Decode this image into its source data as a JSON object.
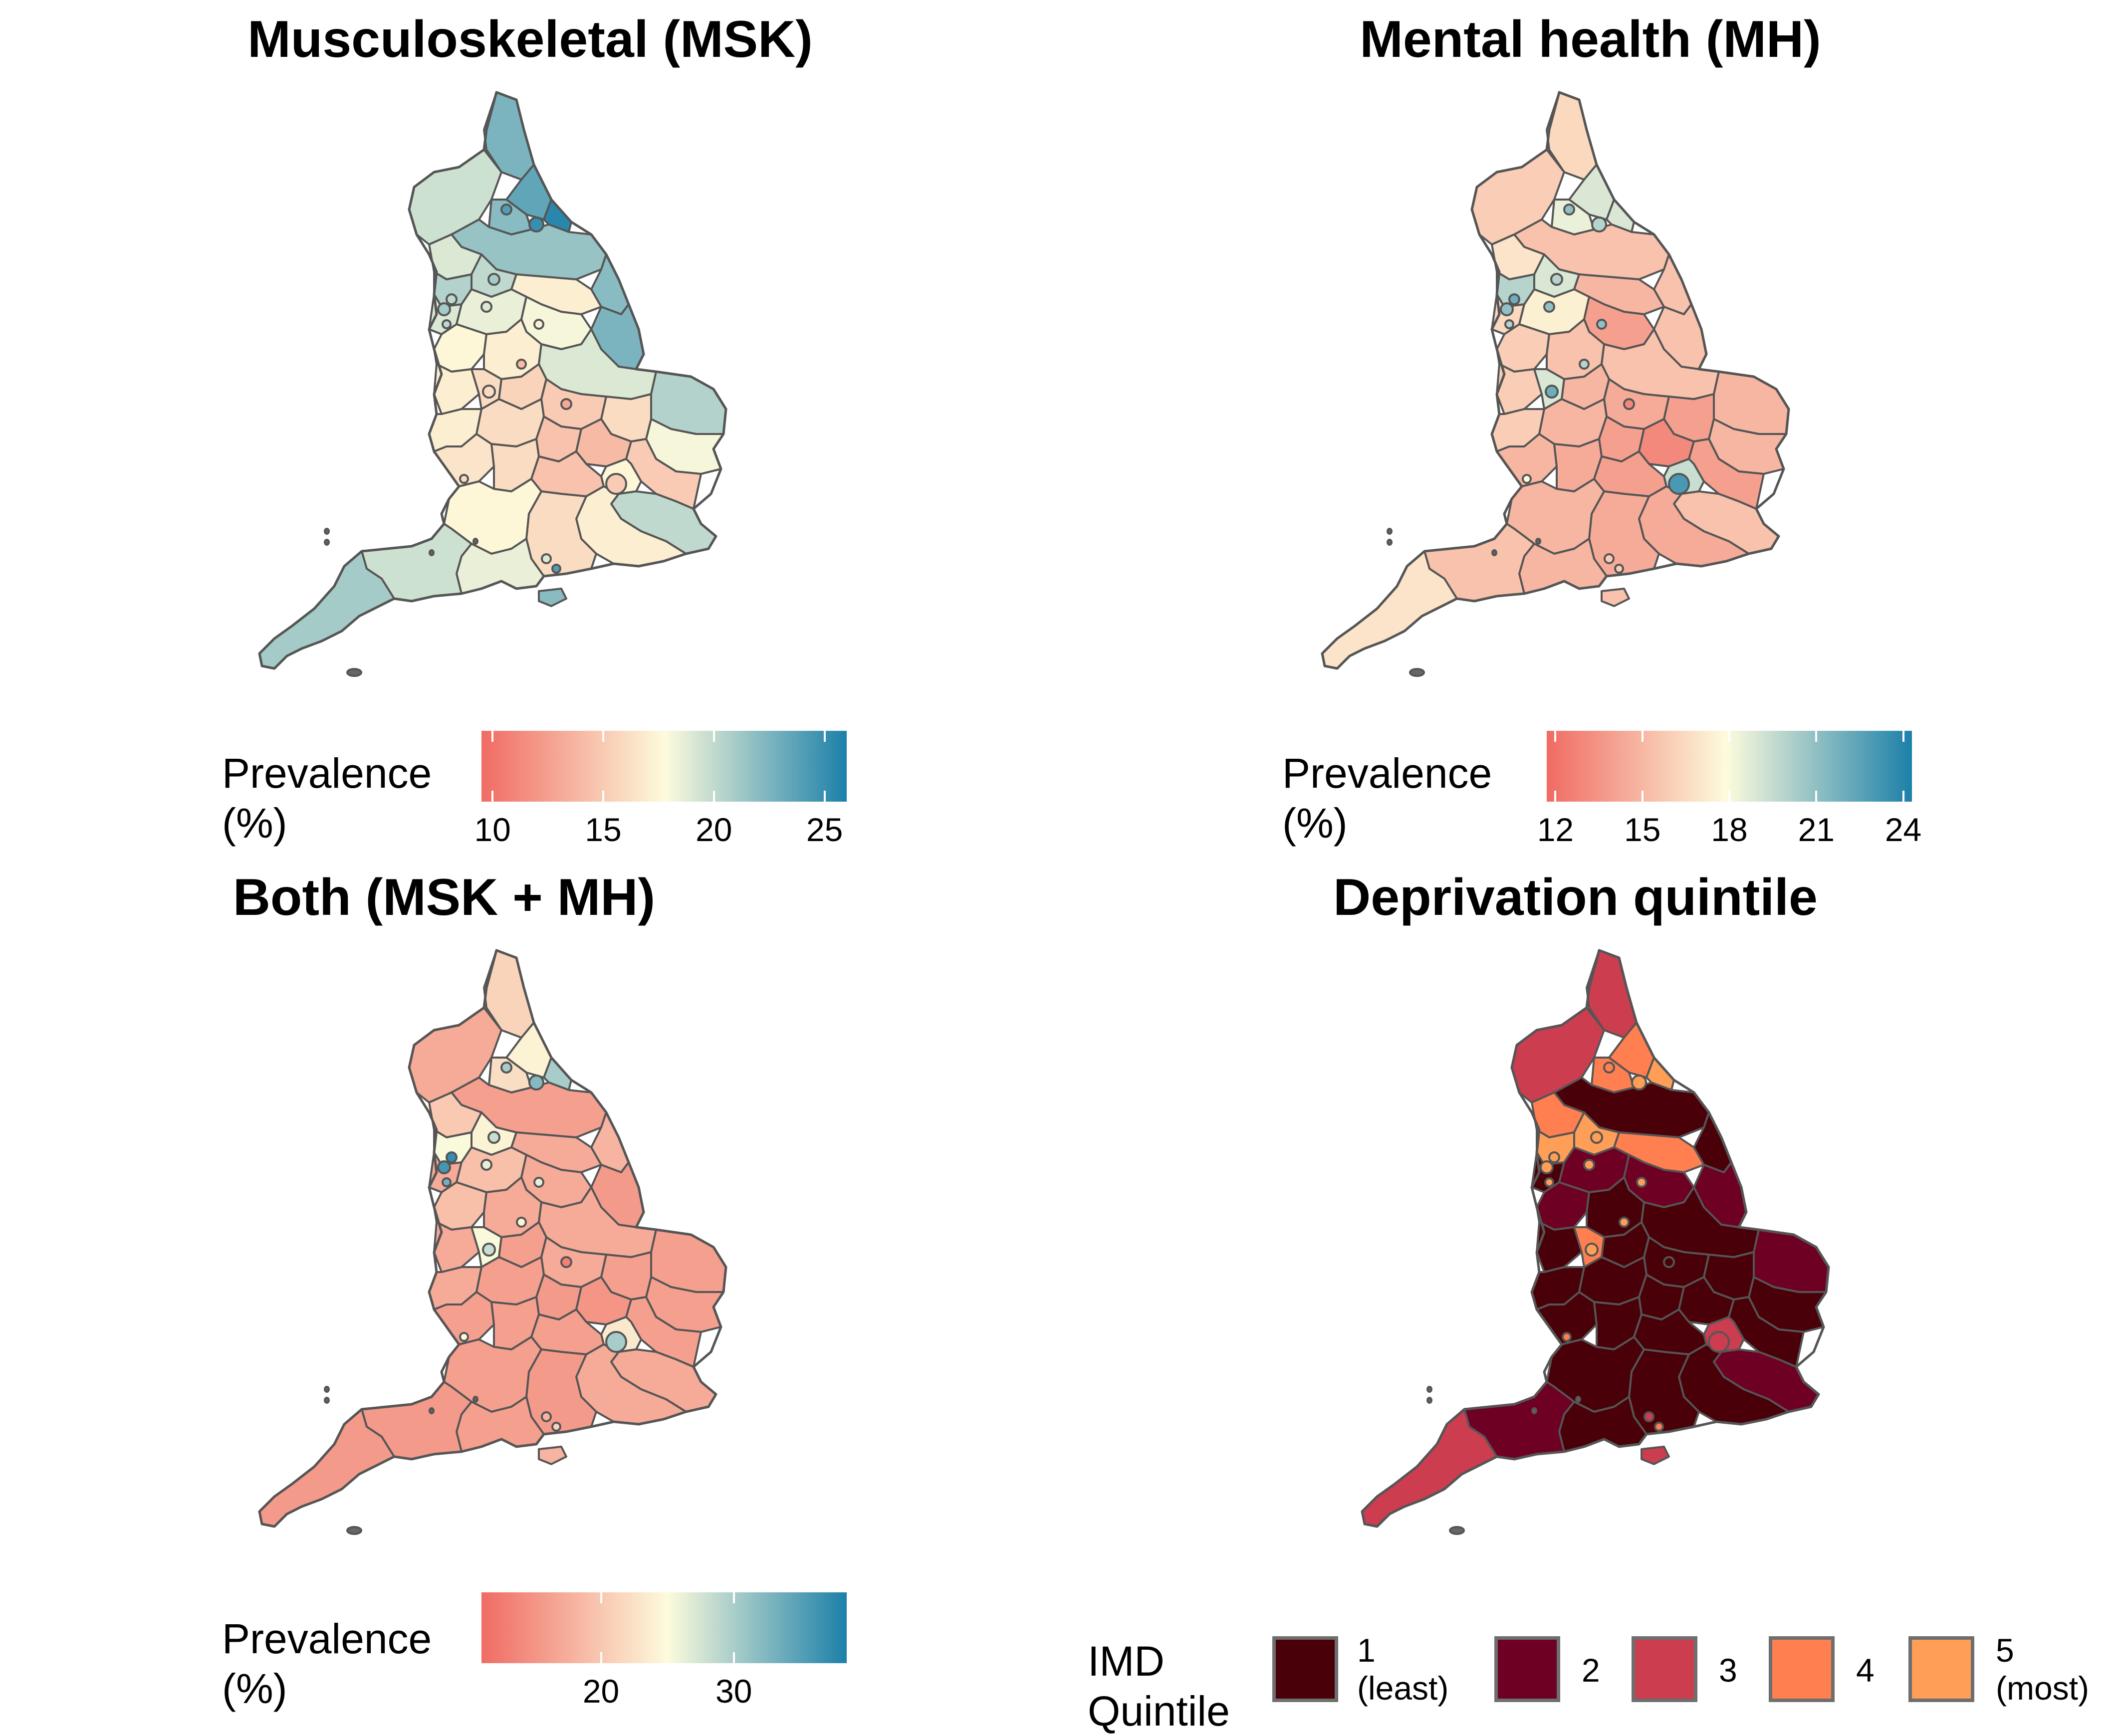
{
  "panels": [
    {
      "id": "msk",
      "title": "Musculoskeletal (MSK)",
      "legend_title": "Prevalence (%)",
      "scale": {
        "min": 9.5,
        "max": 26,
        "ticks": [
          "10",
          "15",
          "20",
          "25"
        ],
        "tick_values": [
          10,
          15,
          20,
          25
        ],
        "midpoint": 17.8
      },
      "fill_note": "regional prevalence, higher in north-east"
    },
    {
      "id": "mh",
      "title": "Mental health (MH)",
      "legend_title": "Prevalence (%)",
      "scale": {
        "min": 11.7,
        "max": 24.3,
        "ticks": [
          "12",
          "15",
          "18",
          "21",
          "24"
        ],
        "tick_values": [
          12,
          15,
          18,
          21,
          24
        ],
        "midpoint": 17.9
      }
    },
    {
      "id": "both",
      "title": "Both (MSK + MH)",
      "legend_title": "Prevalence (%)",
      "scale": {
        "min": 11,
        "max": 38.5,
        "ticks": [
          "20",
          "30"
        ],
        "tick_values": [
          20,
          30
        ],
        "midpoint": 25
      }
    },
    {
      "id": "imd",
      "title": "Deprivation quintile",
      "legend_title": "IMD Quintile",
      "quintiles": [
        {
          "label": "1\n(least)",
          "color": "#4a0008"
        },
        {
          "label": "2",
          "color": "#6e0024"
        },
        {
          "label": "3",
          "color": "#cc3d50"
        },
        {
          "label": "4",
          "color": "#ff7f50"
        },
        {
          "label": "5\n(most)",
          "color": "#ff9e57"
        }
      ]
    }
  ],
  "colors": {
    "diverging_low": "#f06b63",
    "diverging_mid": "#fdfbdc",
    "diverging_high": "#1c80a9",
    "border": "#555555"
  }
}
